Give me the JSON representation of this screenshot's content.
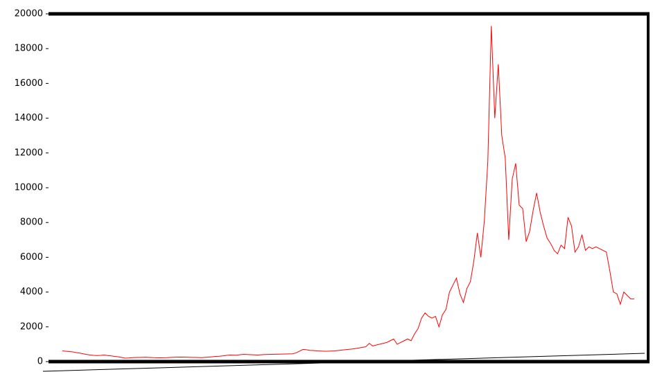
{
  "chart_data": {
    "type": "line",
    "series": [
      {
        "color": "#ff0000",
        "values": [
          620,
          600,
          580,
          560,
          520,
          490,
          450,
          410,
          380,
          360,
          350,
          360,
          380,
          350,
          330,
          300,
          280,
          240,
          200,
          210,
          230,
          235,
          240,
          245,
          250,
          240,
          230,
          225,
          220,
          225,
          230,
          240,
          250,
          255,
          260,
          255,
          250,
          245,
          240,
          235,
          230,
          245,
          260,
          280,
          300,
          310,
          330,
          360,
          380,
          375,
          370,
          400,
          420,
          410,
          400,
          390,
          380,
          395,
          410,
          415,
          420,
          425,
          430,
          435,
          440,
          445,
          450,
          500,
          600,
          700,
          680,
          650,
          640,
          620,
          610,
          600,
          600,
          610,
          620,
          640,
          660,
          680,
          700,
          720,
          750,
          780,
          820,
          850,
          1050,
          900,
          950,
          1000,
          1050,
          1100,
          1200,
          1300,
          1000,
          1100,
          1200,
          1300,
          1200,
          1600,
          1900,
          2500,
          2800,
          2600,
          2500,
          2600,
          2000,
          2700,
          3000,
          4000,
          4400,
          4800,
          3900,
          3400,
          4200,
          4600,
          5800,
          7400,
          6000,
          8100,
          11500,
          19300,
          14000,
          17100,
          13000,
          11700,
          7000,
          10500,
          11400,
          9000,
          8800,
          6900,
          7500,
          8700,
          9700,
          8600,
          7800,
          7100,
          6800,
          6400,
          6200,
          6700,
          6500,
          8300,
          7800,
          6300,
          6600,
          7300,
          6400,
          6600,
          6500,
          6600,
          6500,
          6400,
          6300,
          5200,
          4000,
          3900,
          3300,
          4000,
          3800,
          3600,
          3600
        ]
      }
    ],
    "ylim": [
      0,
      20000
    ],
    "yticks": [
      0,
      2000,
      4000,
      6000,
      8000,
      10000,
      12000,
      14000,
      16000,
      18000,
      20000
    ]
  }
}
